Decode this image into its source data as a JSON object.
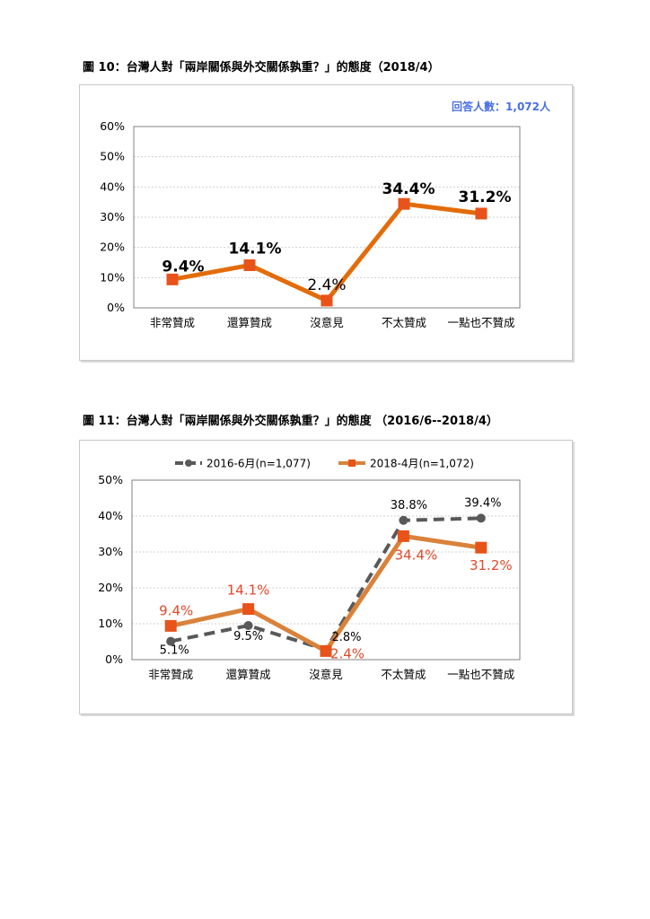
{
  "figure10": {
    "title": "圖 10：台灣人對「兩岸關係與外交關係孰重？」的態度（2018/4）",
    "respondents": "回答人數：1,072人",
    "chart_data": {
      "type": "line",
      "categories": [
        "非常贊成",
        "還算贊成",
        "沒意見",
        "不太贊成",
        "一點也不贊成"
      ],
      "series": [
        {
          "values": [
            9.4,
            14.1,
            2.4,
            34.4,
            31.2
          ],
          "color": "#e36c0a"
        }
      ],
      "data_labels": [
        "9.4%",
        "14.1%",
        "2.4%",
        "34.4%",
        "31.2%"
      ],
      "yticks": [
        "0%",
        "10%",
        "20%",
        "30%",
        "40%",
        "50%",
        "60%"
      ],
      "ylim": [
        0,
        60
      ],
      "grid": true,
      "legend": "none"
    }
  },
  "figure11": {
    "title": "圖 11：台灣人對「兩岸關係與外交關係孰重？」的態度 （2016/6--2018/4）",
    "chart_data": {
      "type": "line",
      "categories": [
        "非常贊成",
        "還算贊成",
        "沒意見",
        "不太贊成",
        "一點也不贊成"
      ],
      "series": [
        {
          "name": "2016-6月(n=1,077)",
          "values": [
            5.1,
            9.5,
            2.8,
            38.8,
            39.4
          ],
          "labels": [
            "5.1%",
            "9.5%",
            "2.8%",
            "38.8%",
            "39.4%"
          ],
          "color": "#595959",
          "style": "dashed"
        },
        {
          "name": "2018-4月(n=1,072)",
          "values": [
            9.4,
            14.1,
            2.4,
            34.4,
            31.2
          ],
          "labels": [
            "9.4%",
            "14.1%",
            "2.4%",
            "34.4%",
            "31.2%"
          ],
          "color": "#d9823b",
          "style": "solid"
        }
      ],
      "yticks": [
        "0%",
        "10%",
        "20%",
        "30%",
        "40%",
        "50%"
      ],
      "ylim": [
        0,
        50
      ],
      "grid": true,
      "legend": "top"
    }
  }
}
